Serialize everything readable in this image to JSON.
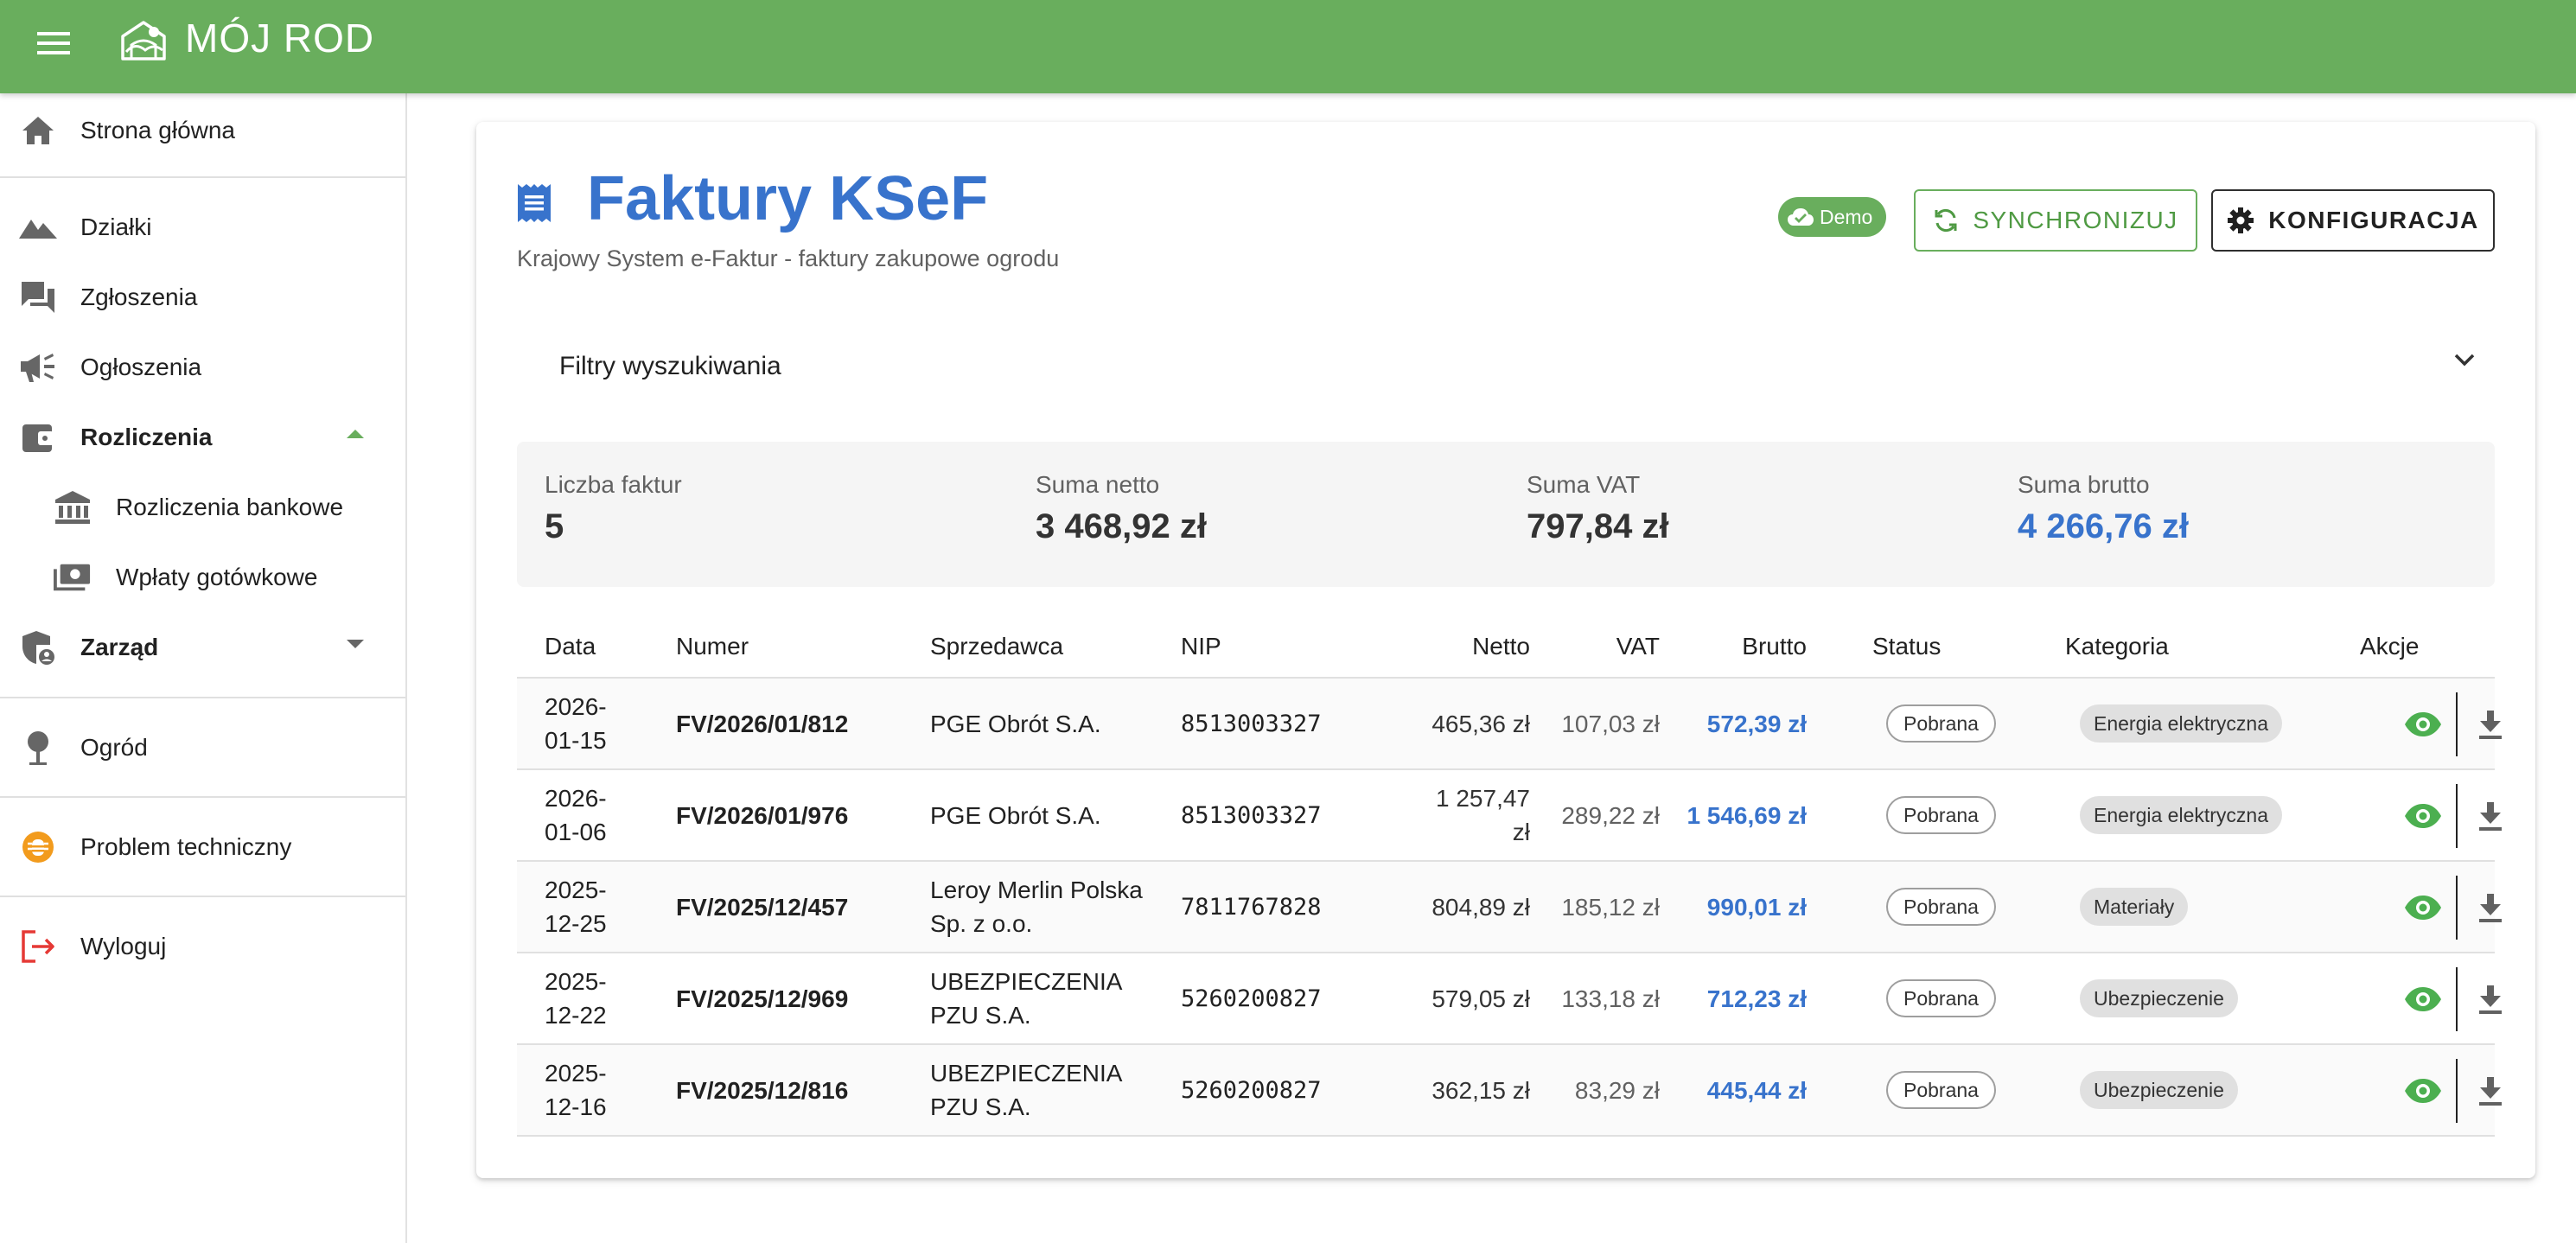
{
  "app": {
    "title": "MÓJ ROD",
    "colors": {
      "primary": "#69ae5d",
      "accent_blue": "#3873cc",
      "danger": "#e53935",
      "warning": "#f29b1d"
    }
  },
  "sidebar": {
    "items": [
      {
        "label": "Strona główna",
        "icon": "home-icon"
      },
      {
        "label": "Działki",
        "icon": "landscape-icon"
      },
      {
        "label": "Zgłoszenia",
        "icon": "forum-icon"
      },
      {
        "label": "Ogłoszenia",
        "icon": "campaign-icon"
      },
      {
        "label": "Rozliczenia",
        "icon": "wallet-icon",
        "expanded": true
      },
      {
        "label": "Rozliczenia bankowe",
        "icon": "bank-icon"
      },
      {
        "label": "Wpłaty gotówkowe",
        "icon": "cash-icon"
      },
      {
        "label": "Zarząd",
        "icon": "admin-shield-icon",
        "expanded": false
      },
      {
        "label": "Ogród",
        "icon": "tree-icon"
      },
      {
        "label": "Problem techniczny",
        "icon": "bug-icon"
      },
      {
        "label": "Wyloguj",
        "icon": "logout-icon"
      }
    ]
  },
  "page": {
    "title": "Faktury KSeF",
    "subtitle": "Krajowy System e-Faktur - faktury zakupowe ogrodu",
    "demo_badge": "Demo",
    "sync_label": "SYNCHRONIZUJ",
    "config_label": "KONFIGURACJA",
    "filters_label": "Filtry wyszukiwania"
  },
  "stats": {
    "count_label": "Liczba faktur",
    "count_value": "5",
    "net_label": "Suma netto",
    "net_value": "3 468,92 zł",
    "vat_label": "Suma VAT",
    "vat_value": "797,84 zł",
    "gross_label": "Suma brutto",
    "gross_value": "4 266,76 zł"
  },
  "table": {
    "headers": {
      "date": "Data",
      "number": "Numer",
      "seller": "Sprzedawca",
      "nip": "NIP",
      "net": "Netto",
      "vat": "VAT",
      "gross": "Brutto",
      "status": "Status",
      "category": "Kategoria",
      "actions": "Akcje"
    },
    "rows": [
      {
        "date": "2026-01-15",
        "number": "FV/2026/01/812",
        "seller": "PGE Obrót S.A.",
        "nip": "8513003327",
        "net": "465,36 zł",
        "vat": "107,03 zł",
        "gross": "572,39 zł",
        "status": "Pobrana",
        "category": "Energia elektryczna"
      },
      {
        "date": "2026-01-06",
        "number": "FV/2026/01/976",
        "seller": "PGE Obrót S.A.",
        "nip": "8513003327",
        "net": "1 257,47 zł",
        "vat": "289,22 zł",
        "gross": "1 546,69 zł",
        "status": "Pobrana",
        "category": "Energia elektryczna"
      },
      {
        "date": "2025-12-25",
        "number": "FV/2025/12/457",
        "seller": "Leroy Merlin Polska Sp. z o.o.",
        "nip": "7811767828",
        "net": "804,89 zł",
        "vat": "185,12 zł",
        "gross": "990,01 zł",
        "status": "Pobrana",
        "category": "Materiały"
      },
      {
        "date": "2025-12-22",
        "number": "FV/2025/12/969",
        "seller": "UBEZPIECZENIA PZU S.A.",
        "nip": "5260200827",
        "net": "579,05 zł",
        "vat": "133,18 zł",
        "gross": "712,23 zł",
        "status": "Pobrana",
        "category": "Ubezpieczenie"
      },
      {
        "date": "2025-12-16",
        "number": "FV/2025/12/816",
        "seller": "UBEZPIECZENIA PZU S.A.",
        "nip": "5260200827",
        "net": "362,15 zł",
        "vat": "83,29 zł",
        "gross": "445,44 zł",
        "status": "Pobrana",
        "category": "Ubezpieczenie"
      }
    ]
  }
}
